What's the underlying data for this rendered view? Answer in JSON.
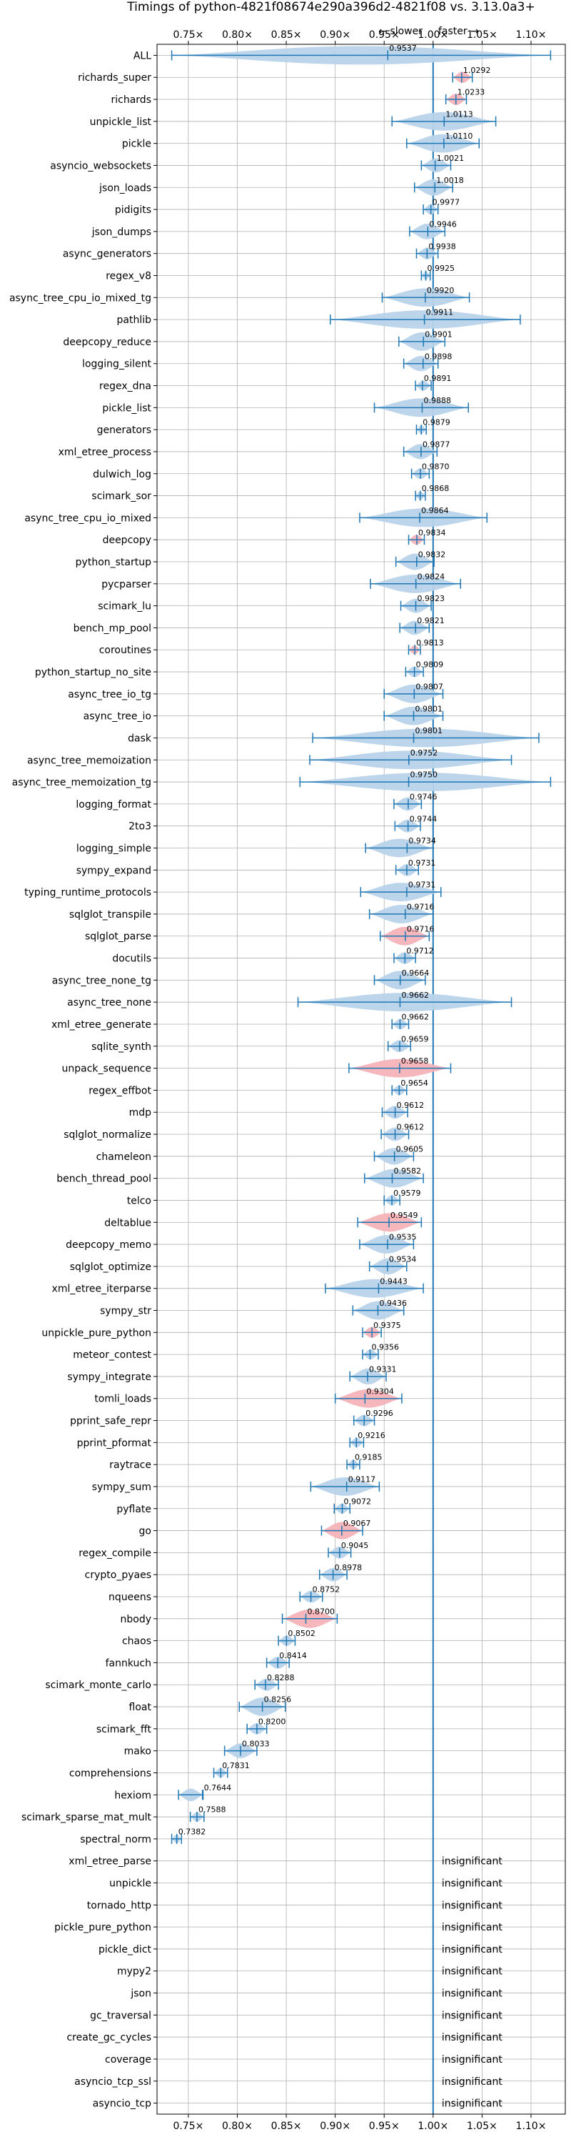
{
  "chart_data": {
    "type": "violin",
    "title": "Timings of python-4821f08674e290a396d2-4821f08 vs. 3.13.0a3+",
    "annotation_slower": "← slower",
    "annotation_faster": "faster →",
    "x_ticks": [
      "0.75×",
      "0.80×",
      "0.85×",
      "0.90×",
      "0.95×",
      "1.00×",
      "1.05×",
      "1.10×"
    ],
    "x_tick_values": [
      0.75,
      0.8,
      0.85,
      0.9,
      0.95,
      1.0,
      1.05,
      1.1
    ],
    "xlim": [
      0.718,
      1.135
    ],
    "reference_line": 1.0,
    "grid": true,
    "colors": {
      "line": "#1f77b4",
      "violin": "#b8d3ea",
      "slower_violin": "#f5b3b8"
    },
    "benchmarks": [
      {
        "name": "ALL",
        "label": "0.9537",
        "value": 0.9537,
        "min": 0.733,
        "max": 1.12,
        "color": "blue"
      },
      {
        "name": "richards_super",
        "label": "1.0292",
        "value": 1.0292,
        "min": 1.02,
        "max": 1.04,
        "color": "red"
      },
      {
        "name": "richards",
        "label": "1.0233",
        "value": 1.0233,
        "min": 1.013,
        "max": 1.034,
        "color": "red"
      },
      {
        "name": "unpickle_list",
        "label": "1.0113",
        "value": 1.0113,
        "min": 0.958,
        "max": 1.064,
        "color": "blue"
      },
      {
        "name": "pickle",
        "label": "1.0110",
        "value": 1.011,
        "min": 0.973,
        "max": 1.047,
        "color": "blue"
      },
      {
        "name": "asyncio_websockets",
        "label": "1.0021",
        "value": 1.0021,
        "min": 0.988,
        "max": 1.018,
        "color": "blue"
      },
      {
        "name": "json_loads",
        "label": "1.0018",
        "value": 1.0018,
        "min": 0.981,
        "max": 1.02,
        "color": "blue"
      },
      {
        "name": "pidigits",
        "label": "0.9977",
        "value": 0.9977,
        "min": 0.99,
        "max": 1.005,
        "color": "blue"
      },
      {
        "name": "json_dumps",
        "label": "0.9946",
        "value": 0.9946,
        "min": 0.976,
        "max": 1.012,
        "color": "blue"
      },
      {
        "name": "async_generators",
        "label": "0.9938",
        "value": 0.9938,
        "min": 0.983,
        "max": 1.005,
        "color": "blue"
      },
      {
        "name": "regex_v8",
        "label": "0.9925",
        "value": 0.9925,
        "min": 0.988,
        "max": 0.997,
        "color": "blue"
      },
      {
        "name": "async_tree_cpu_io_mixed_tg",
        "label": "0.9920",
        "value": 0.992,
        "min": 0.948,
        "max": 1.037,
        "color": "blue"
      },
      {
        "name": "pathlib",
        "label": "0.9911",
        "value": 0.9911,
        "min": 0.895,
        "max": 1.089,
        "color": "blue"
      },
      {
        "name": "deepcopy_reduce",
        "label": "0.9901",
        "value": 0.9901,
        "min": 0.965,
        "max": 1.012,
        "color": "blue"
      },
      {
        "name": "logging_silent",
        "label": "0.9898",
        "value": 0.9898,
        "min": 0.97,
        "max": 1.005,
        "color": "blue"
      },
      {
        "name": "regex_dna",
        "label": "0.9891",
        "value": 0.9891,
        "min": 0.982,
        "max": 0.998,
        "color": "blue"
      },
      {
        "name": "pickle_list",
        "label": "0.9888",
        "value": 0.9888,
        "min": 0.94,
        "max": 1.036,
        "color": "blue"
      },
      {
        "name": "generators",
        "label": "0.9879",
        "value": 0.9879,
        "min": 0.983,
        "max": 0.993,
        "color": "blue"
      },
      {
        "name": "xml_etree_process",
        "label": "0.9877",
        "value": 0.9877,
        "min": 0.97,
        "max": 1.004,
        "color": "blue"
      },
      {
        "name": "dulwich_log",
        "label": "0.9870",
        "value": 0.987,
        "min": 0.978,
        "max": 0.996,
        "color": "blue"
      },
      {
        "name": "scimark_sor",
        "label": "0.9868",
        "value": 0.9868,
        "min": 0.982,
        "max": 0.992,
        "color": "blue"
      },
      {
        "name": "async_tree_cpu_io_mixed",
        "label": "0.9864",
        "value": 0.9864,
        "min": 0.925,
        "max": 1.055,
        "color": "blue"
      },
      {
        "name": "deepcopy",
        "label": "0.9834",
        "value": 0.9834,
        "min": 0.975,
        "max": 0.991,
        "color": "red"
      },
      {
        "name": "python_startup",
        "label": "0.9832",
        "value": 0.9832,
        "min": 0.962,
        "max": 1.001,
        "color": "blue"
      },
      {
        "name": "pycparser",
        "label": "0.9824",
        "value": 0.9824,
        "min": 0.936,
        "max": 1.028,
        "color": "blue"
      },
      {
        "name": "scimark_lu",
        "label": "0.9823",
        "value": 0.9823,
        "min": 0.967,
        "max": 0.998,
        "color": "blue"
      },
      {
        "name": "bench_mp_pool",
        "label": "0.9821",
        "value": 0.9821,
        "min": 0.966,
        "max": 0.996,
        "color": "blue"
      },
      {
        "name": "coroutines",
        "label": "0.9813",
        "value": 0.9813,
        "min": 0.975,
        "max": 0.987,
        "color": "red"
      },
      {
        "name": "python_startup_no_site",
        "label": "0.9809",
        "value": 0.9809,
        "min": 0.972,
        "max": 0.99,
        "color": "blue"
      },
      {
        "name": "async_tree_io_tg",
        "label": "0.9807",
        "value": 0.9807,
        "min": 0.95,
        "max": 1.01,
        "color": "blue"
      },
      {
        "name": "async_tree_io",
        "label": "0.9801",
        "value": 0.9801,
        "min": 0.95,
        "max": 1.01,
        "color": "blue"
      },
      {
        "name": "dask",
        "label": "0.9801",
        "value": 0.9801,
        "min": 0.877,
        "max": 1.108,
        "color": "blue"
      },
      {
        "name": "async_tree_memoization",
        "label": "0.9752",
        "value": 0.9752,
        "min": 0.874,
        "max": 1.08,
        "color": "blue"
      },
      {
        "name": "async_tree_memoization_tg",
        "label": "0.9750",
        "value": 0.975,
        "min": 0.864,
        "max": 1.12,
        "color": "blue"
      },
      {
        "name": "logging_format",
        "label": "0.9746",
        "value": 0.9746,
        "min": 0.96,
        "max": 0.988,
        "color": "blue"
      },
      {
        "name": "2to3",
        "label": "0.9744",
        "value": 0.9744,
        "min": 0.961,
        "max": 0.987,
        "color": "blue"
      },
      {
        "name": "logging_simple",
        "label": "0.9734",
        "value": 0.9734,
        "min": 0.931,
        "max": 1.0,
        "color": "blue"
      },
      {
        "name": "sympy_expand",
        "label": "0.9731",
        "value": 0.9731,
        "min": 0.962,
        "max": 0.985,
        "color": "blue"
      },
      {
        "name": "typing_runtime_protocols",
        "label": "0.9731",
        "value": 0.9731,
        "min": 0.926,
        "max": 1.008,
        "color": "blue"
      },
      {
        "name": "sqlglot_transpile",
        "label": "0.9716",
        "value": 0.9716,
        "min": 0.935,
        "max": 1.0,
        "color": "blue"
      },
      {
        "name": "sqlglot_parse",
        "label": "0.9716",
        "value": 0.9716,
        "min": 0.946,
        "max": 0.996,
        "color": "red"
      },
      {
        "name": "docutils",
        "label": "0.9712",
        "value": 0.9712,
        "min": 0.96,
        "max": 0.982,
        "color": "blue"
      },
      {
        "name": "async_tree_none_tg",
        "label": "0.9664",
        "value": 0.9664,
        "min": 0.94,
        "max": 0.992,
        "color": "blue"
      },
      {
        "name": "async_tree_none",
        "label": "0.9662",
        "value": 0.9662,
        "min": 0.862,
        "max": 1.08,
        "color": "blue"
      },
      {
        "name": "xml_etree_generate",
        "label": "0.9662",
        "value": 0.9662,
        "min": 0.958,
        "max": 0.975,
        "color": "blue"
      },
      {
        "name": "sqlite_synth",
        "label": "0.9659",
        "value": 0.9659,
        "min": 0.954,
        "max": 0.977,
        "color": "blue"
      },
      {
        "name": "unpack_sequence",
        "label": "0.9658",
        "value": 0.9658,
        "min": 0.914,
        "max": 1.018,
        "color": "red"
      },
      {
        "name": "regex_effbot",
        "label": "0.9654",
        "value": 0.9654,
        "min": 0.958,
        "max": 0.973,
        "color": "blue"
      },
      {
        "name": "mdp",
        "label": "0.9612",
        "value": 0.9612,
        "min": 0.948,
        "max": 0.974,
        "color": "blue"
      },
      {
        "name": "sqlglot_normalize",
        "label": "0.9612",
        "value": 0.9612,
        "min": 0.947,
        "max": 0.975,
        "color": "blue"
      },
      {
        "name": "chameleon",
        "label": "0.9605",
        "value": 0.9605,
        "min": 0.94,
        "max": 0.98,
        "color": "blue"
      },
      {
        "name": "bench_thread_pool",
        "label": "0.9582",
        "value": 0.9582,
        "min": 0.93,
        "max": 0.99,
        "color": "blue"
      },
      {
        "name": "telco",
        "label": "0.9579",
        "value": 0.9579,
        "min": 0.95,
        "max": 0.966,
        "color": "blue"
      },
      {
        "name": "deltablue",
        "label": "0.9549",
        "value": 0.9549,
        "min": 0.923,
        "max": 0.988,
        "color": "red"
      },
      {
        "name": "deepcopy_memo",
        "label": "0.9535",
        "value": 0.9535,
        "min": 0.925,
        "max": 0.98,
        "color": "blue"
      },
      {
        "name": "sqlglot_optimize",
        "label": "0.9534",
        "value": 0.9534,
        "min": 0.935,
        "max": 0.973,
        "color": "blue"
      },
      {
        "name": "xml_etree_iterparse",
        "label": "0.9443",
        "value": 0.9443,
        "min": 0.89,
        "max": 0.99,
        "color": "blue"
      },
      {
        "name": "sympy_str",
        "label": "0.9436",
        "value": 0.9436,
        "min": 0.918,
        "max": 0.97,
        "color": "blue"
      },
      {
        "name": "unpickle_pure_python",
        "label": "0.9375",
        "value": 0.9375,
        "min": 0.928,
        "max": 0.947,
        "color": "red"
      },
      {
        "name": "meteor_contest",
        "label": "0.9356",
        "value": 0.9356,
        "min": 0.928,
        "max": 0.944,
        "color": "blue"
      },
      {
        "name": "sympy_integrate",
        "label": "0.9331",
        "value": 0.9331,
        "min": 0.915,
        "max": 0.952,
        "color": "blue"
      },
      {
        "name": "tomli_loads",
        "label": "0.9304",
        "value": 0.9304,
        "min": 0.9,
        "max": 0.968,
        "color": "red"
      },
      {
        "name": "pprint_safe_repr",
        "label": "0.9296",
        "value": 0.9296,
        "min": 0.919,
        "max": 0.94,
        "color": "blue"
      },
      {
        "name": "pprint_pformat",
        "label": "0.9216",
        "value": 0.9216,
        "min": 0.915,
        "max": 0.929,
        "color": "blue"
      },
      {
        "name": "raytrace",
        "label": "0.9185",
        "value": 0.9185,
        "min": 0.912,
        "max": 0.925,
        "color": "blue"
      },
      {
        "name": "sympy_sum",
        "label": "0.9117",
        "value": 0.9117,
        "min": 0.875,
        "max": 0.945,
        "color": "blue"
      },
      {
        "name": "pyflate",
        "label": "0.9072",
        "value": 0.9072,
        "min": 0.899,
        "max": 0.915,
        "color": "blue"
      },
      {
        "name": "go",
        "label": "0.9067",
        "value": 0.9067,
        "min": 0.886,
        "max": 0.928,
        "color": "red"
      },
      {
        "name": "regex_compile",
        "label": "0.9045",
        "value": 0.9045,
        "min": 0.893,
        "max": 0.916,
        "color": "blue"
      },
      {
        "name": "crypto_pyaes",
        "label": "0.8978",
        "value": 0.8978,
        "min": 0.884,
        "max": 0.912,
        "color": "blue"
      },
      {
        "name": "nqueens",
        "label": "0.8752",
        "value": 0.8752,
        "min": 0.864,
        "max": 0.887,
        "color": "blue"
      },
      {
        "name": "nbody",
        "label": "0.8700",
        "value": 0.87,
        "min": 0.846,
        "max": 0.902,
        "color": "red"
      },
      {
        "name": "chaos",
        "label": "0.8502",
        "value": 0.8502,
        "min": 0.842,
        "max": 0.859,
        "color": "blue"
      },
      {
        "name": "fannkuch",
        "label": "0.8414",
        "value": 0.8414,
        "min": 0.83,
        "max": 0.853,
        "color": "blue"
      },
      {
        "name": "scimark_monte_carlo",
        "label": "0.8288",
        "value": 0.8288,
        "min": 0.818,
        "max": 0.842,
        "color": "blue"
      },
      {
        "name": "float",
        "label": "0.8256",
        "value": 0.8256,
        "min": 0.802,
        "max": 0.849,
        "color": "blue"
      },
      {
        "name": "scimark_fft",
        "label": "0.8200",
        "value": 0.82,
        "min": 0.81,
        "max": 0.83,
        "color": "blue"
      },
      {
        "name": "mako",
        "label": "0.8033",
        "value": 0.8033,
        "min": 0.787,
        "max": 0.82,
        "color": "blue"
      },
      {
        "name": "comprehensions",
        "label": "0.7831",
        "value": 0.7831,
        "min": 0.776,
        "max": 0.79,
        "color": "blue"
      },
      {
        "name": "hexiom",
        "label": "0.7644",
        "value": 0.7644,
        "min": 0.74,
        "max": 0.765,
        "color": "blue"
      },
      {
        "name": "scimark_sparse_mat_mult",
        "label": "0.7588",
        "value": 0.7588,
        "min": 0.752,
        "max": 0.766,
        "color": "blue"
      },
      {
        "name": "spectral_norm",
        "label": "0.7382",
        "value": 0.7382,
        "min": 0.733,
        "max": 0.743,
        "color": "blue"
      }
    ],
    "insignificant_label": "insignificant",
    "insignificant": [
      "xml_etree_parse",
      "unpickle",
      "tornado_http",
      "pickle_pure_python",
      "pickle_dict",
      "mypy2",
      "json",
      "gc_traversal",
      "create_gc_cycles",
      "coverage",
      "asyncio_tcp_ssl",
      "asyncio_tcp"
    ]
  }
}
